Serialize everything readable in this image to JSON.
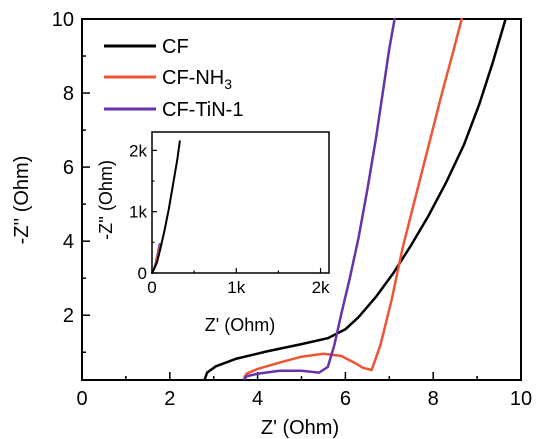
{
  "chart_data": [
    {
      "type": "line",
      "xlabel": "Z' (Ohm)",
      "ylabel": "-Z'' (Ohm)",
      "xlim": [
        0,
        10
      ],
      "ylim": [
        0.25,
        10
      ],
      "x_ticks": [
        0,
        2,
        4,
        6,
        8,
        10
      ],
      "x_tick_labels": [
        "0",
        "2",
        "4",
        "6",
        "8",
        "10"
      ],
      "y_ticks": [
        2,
        4,
        6,
        8,
        10
      ],
      "y_tick_labels": [
        "2",
        "4",
        "6",
        "8",
        "10"
      ],
      "grid": false,
      "legend_position": "top-left",
      "series": [
        {
          "name": "CF",
          "color": "#000000",
          "x": [
            2.8,
            2.85,
            3.05,
            3.5,
            4.2,
            5.0,
            5.6,
            6.0,
            6.3,
            6.7,
            7.1,
            7.5,
            7.9,
            8.3,
            8.7,
            9.05,
            9.35,
            9.65
          ],
          "y": [
            0.28,
            0.45,
            0.62,
            0.82,
            1.02,
            1.22,
            1.38,
            1.62,
            1.95,
            2.5,
            3.15,
            3.9,
            4.7,
            5.6,
            6.6,
            7.7,
            8.8,
            10.0
          ]
        },
        {
          "name": "CF-NH",
          "name_subscript": "3",
          "color": "#ee5533",
          "x": [
            3.7,
            3.75,
            4.0,
            4.5,
            5.0,
            5.5,
            5.9,
            6.2,
            6.4,
            6.6,
            6.8,
            7.05,
            7.3,
            7.6,
            7.9,
            8.2,
            8.45,
            8.65
          ],
          "y": [
            0.32,
            0.42,
            0.55,
            0.72,
            0.88,
            0.96,
            0.9,
            0.72,
            0.58,
            0.52,
            1.2,
            2.4,
            3.8,
            5.2,
            6.6,
            8.0,
            9.1,
            10.0
          ]
        },
        {
          "name": "CF-TiN-1",
          "color": "#6633aa",
          "x": [
            3.7,
            3.75,
            4.0,
            4.5,
            5.0,
            5.4,
            5.6,
            5.75,
            5.9,
            6.1,
            6.3,
            6.5,
            6.7,
            6.85,
            7.0,
            7.12
          ],
          "y": [
            0.28,
            0.35,
            0.42,
            0.5,
            0.5,
            0.45,
            0.6,
            1.2,
            2.0,
            3.0,
            4.1,
            5.4,
            6.8,
            8.0,
            9.2,
            10.0
          ]
        }
      ]
    },
    {
      "type": "line",
      "inset": true,
      "xlabel": "Z' (Ohm)",
      "ylabel": "-Z'' (Ohm)",
      "xlim": [
        0,
        2100
      ],
      "ylim": [
        0,
        2300
      ],
      "x_ticks": [
        0,
        1000,
        2000
      ],
      "x_tick_labels": [
        "0",
        "1k",
        "2k"
      ],
      "y_ticks": [
        0,
        1000,
        2000
      ],
      "y_tick_labels": [
        "0",
        "1k",
        "2k"
      ],
      "series": [
        {
          "name": "CF-TiN-1",
          "color": "#6633aa",
          "x": [
            0,
            20,
            40,
            60,
            80,
            90
          ],
          "y": [
            0,
            60,
            150,
            280,
            400,
            470
          ]
        },
        {
          "name": "CF-NH",
          "name_subscript": "3",
          "color": "#ee5533",
          "x": [
            0,
            30,
            50,
            70,
            90,
            100
          ],
          "y": [
            0,
            80,
            180,
            300,
            400,
            450
          ]
        },
        {
          "name": "CF",
          "color": "#000000",
          "x": [
            0,
            30,
            60,
            100,
            150,
            200,
            250,
            300,
            330
          ],
          "y": [
            0,
            80,
            180,
            400,
            700,
            1050,
            1450,
            1850,
            2150
          ]
        }
      ]
    }
  ]
}
